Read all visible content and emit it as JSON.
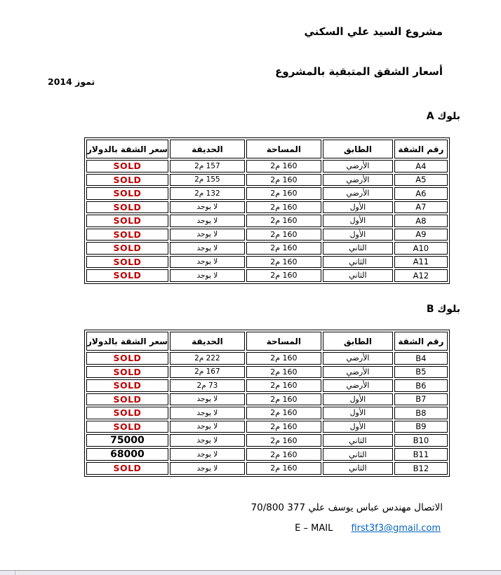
{
  "document": {
    "title": "مشروع السيد علي السكني",
    "subtitle": "أسعار الشقق المتبقية بالمشروع",
    "date": "تموز 2014"
  },
  "colors": {
    "sold_red": "#C00000",
    "link_blue": "#0563C1",
    "border_black": "#000000"
  },
  "column_keys": [
    "apt",
    "floor",
    "area",
    "garden",
    "price"
  ],
  "tables": [
    {
      "block_label": "بلوك A",
      "headers": {
        "apt": "رقم الشقة",
        "floor": "الطابق",
        "area": "المساحة",
        "garden": "الحديقة",
        "price": "سعر الشقة بالدولار"
      },
      "rows": [
        {
          "apt": "A4",
          "floor": "الأرضي",
          "area": "160 م2",
          "garden": "157 م2",
          "price": "SOLD",
          "sold": true
        },
        {
          "apt": "A5",
          "floor": "الأرضي",
          "area": "160 م2",
          "garden": "155 م2",
          "price": "SOLD",
          "sold": true
        },
        {
          "apt": "A6",
          "floor": "الأرضي",
          "area": "160 م2",
          "garden": "132 م2",
          "price": "SOLD",
          "sold": true
        },
        {
          "apt": "A7",
          "floor": "الأول",
          "area": "160 م2",
          "garden": "لا يوجد",
          "price": "SOLD",
          "sold": true
        },
        {
          "apt": "A8",
          "floor": "الأول",
          "area": "160 م2",
          "garden": "لا يوجد",
          "price": "SOLD",
          "sold": true
        },
        {
          "apt": "A9",
          "floor": "الأول",
          "area": "160 م2",
          "garden": "لا يوجد",
          "price": "SOLD",
          "sold": true
        },
        {
          "apt": "A10",
          "floor": "الثاني",
          "area": "160 م2",
          "garden": "لا يوجد",
          "price": "SOLD",
          "sold": true
        },
        {
          "apt": "A11",
          "floor": "الثاني",
          "area": "160 م2",
          "garden": "لا يوجد",
          "price": "SOLD",
          "sold": true
        },
        {
          "apt": "A12",
          "floor": "الثاني",
          "area": "160 م2",
          "garden": "لا يوجد",
          "price": "SOLD",
          "sold": true
        }
      ]
    },
    {
      "block_label": "بلوك B",
      "headers": {
        "apt": "رقم الشقة",
        "floor": "الطابق",
        "area": "المساحة",
        "garden": "الحديقة",
        "price": "سعر الشقة بالدولار"
      },
      "rows": [
        {
          "apt": "B4",
          "floor": "الأرضي",
          "area": "160 م2",
          "garden": "222 م2",
          "price": "SOLD",
          "sold": true
        },
        {
          "apt": "B5",
          "floor": "الأرضي",
          "area": "160 م2",
          "garden": "167 م2",
          "price": "SOLD",
          "sold": true
        },
        {
          "apt": "B6",
          "floor": "الأرضي",
          "area": "160 م2",
          "garden": "73 م2",
          "price": "SOLD",
          "sold": true
        },
        {
          "apt": "B7",
          "floor": "الأول",
          "area": "160 م2",
          "garden": "لا يوجد",
          "price": "SOLD",
          "sold": true
        },
        {
          "apt": "B8",
          "floor": "الأول",
          "area": "160 م2",
          "garden": "لا يوجد",
          "price": "SOLD",
          "sold": true
        },
        {
          "apt": "B9",
          "floor": "الأول",
          "area": "160 م2",
          "garden": "لا يوجد",
          "price": "SOLD",
          "sold": true
        },
        {
          "apt": "B10",
          "floor": "الثاني",
          "area": "160 م2",
          "garden": "لا يوجد",
          "price": "75000",
          "sold": false
        },
        {
          "apt": "B11",
          "floor": "الثاني",
          "area": "160 م2",
          "garden": "لا يوجد",
          "price": "68000",
          "sold": false
        },
        {
          "apt": "B12",
          "floor": "الثاني",
          "area": "160 م2",
          "garden": "لا يوجد",
          "price": "SOLD",
          "sold": true
        }
      ]
    }
  ],
  "footer": {
    "contact_text": "الاتصال مهندس عباس يوسف علي",
    "phone": "70/800 377",
    "email_label": "E – MAIL",
    "email": "first3f3@gmail.com"
  }
}
